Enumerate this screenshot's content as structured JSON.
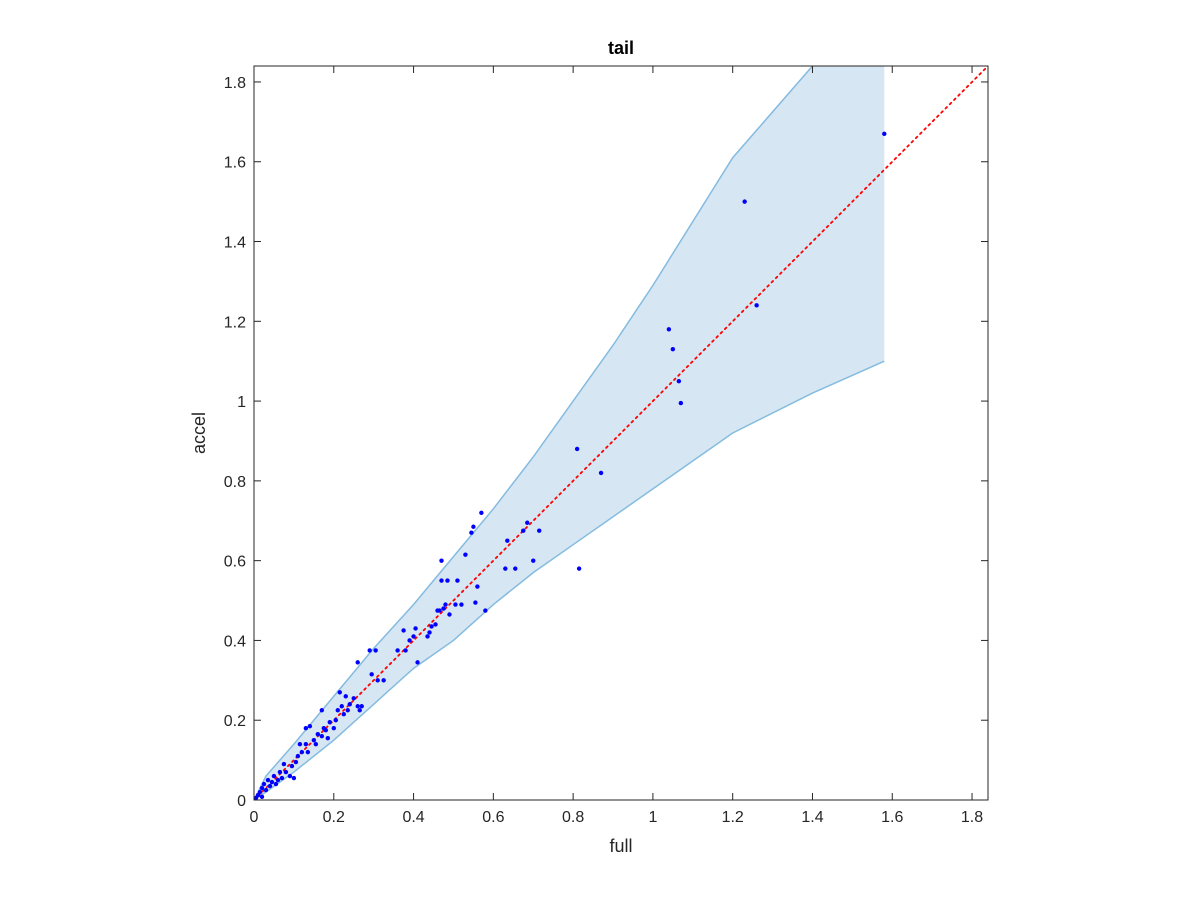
{
  "chart_data": {
    "type": "scatter",
    "title": "tail",
    "xlabel": "full",
    "ylabel": "accel",
    "xlim": [
      0,
      1.84
    ],
    "ylim": [
      0,
      1.84
    ],
    "xticks": [
      0,
      0.2,
      0.4,
      0.6,
      0.8,
      1,
      1.2,
      1.4,
      1.6,
      1.8
    ],
    "xtick_labels": [
      "0",
      "0.2",
      "0.4",
      "0.6",
      "0.8",
      "1",
      "1.2",
      "1.4",
      "1.6",
      "1.8"
    ],
    "yticks": [
      0,
      0.2,
      0.4,
      0.6,
      0.8,
      1,
      1.2,
      1.4,
      1.6,
      1.8
    ],
    "ytick_labels": [
      "0",
      "0.2",
      "0.4",
      "0.6",
      "0.8",
      "1",
      "1.2",
      "1.4",
      "1.6",
      "1.8"
    ],
    "grid": false,
    "box": true,
    "colors": {
      "points": "#0000ff",
      "band_fill": "#d6e6f3",
      "band_edge": "#84bbe0",
      "reference_line": "#ff0000",
      "axis": "#262626"
    },
    "band": {
      "upper": [
        [
          0,
          0
        ],
        [
          0.03,
          0.06
        ],
        [
          0.1,
          0.14
        ],
        [
          0.2,
          0.26
        ],
        [
          0.3,
          0.38
        ],
        [
          0.4,
          0.49
        ],
        [
          0.5,
          0.61
        ],
        [
          0.6,
          0.73
        ],
        [
          0.7,
          0.86
        ],
        [
          0.8,
          1.0
        ],
        [
          0.9,
          1.14
        ],
        [
          1.0,
          1.29
        ],
        [
          1.2,
          1.61
        ],
        [
          1.4,
          1.84
        ],
        [
          1.58,
          1.84
        ]
      ],
      "lower": [
        [
          0,
          0
        ],
        [
          0.03,
          0.02
        ],
        [
          0.1,
          0.07
        ],
        [
          0.2,
          0.15
        ],
        [
          0.3,
          0.24
        ],
        [
          0.4,
          0.33
        ],
        [
          0.5,
          0.4
        ],
        [
          0.6,
          0.49
        ],
        [
          0.7,
          0.57
        ],
        [
          0.8,
          0.64
        ],
        [
          1.0,
          0.78
        ],
        [
          1.2,
          0.92
        ],
        [
          1.4,
          1.02
        ],
        [
          1.58,
          1.1
        ]
      ]
    },
    "reference_line": {
      "style": "dotted",
      "from": [
        0,
        0
      ],
      "to": [
        1.84,
        1.84
      ]
    },
    "points": [
      [
        0.005,
        0.005
      ],
      [
        0.01,
        0.012
      ],
      [
        0.015,
        0.02
      ],
      [
        0.02,
        0.008
      ],
      [
        0.02,
        0.03
      ],
      [
        0.025,
        0.04
      ],
      [
        0.03,
        0.025
      ],
      [
        0.035,
        0.05
      ],
      [
        0.04,
        0.035
      ],
      [
        0.045,
        0.045
      ],
      [
        0.05,
        0.06
      ],
      [
        0.055,
        0.04
      ],
      [
        0.06,
        0.05
      ],
      [
        0.065,
        0.07
      ],
      [
        0.07,
        0.055
      ],
      [
        0.075,
        0.09
      ],
      [
        0.08,
        0.07
      ],
      [
        0.09,
        0.06
      ],
      [
        0.095,
        0.085
      ],
      [
        0.1,
        0.055
      ],
      [
        0.105,
        0.095
      ],
      [
        0.11,
        0.11
      ],
      [
        0.115,
        0.14
      ],
      [
        0.12,
        0.12
      ],
      [
        0.13,
        0.14
      ],
      [
        0.13,
        0.18
      ],
      [
        0.135,
        0.12
      ],
      [
        0.14,
        0.185
      ],
      [
        0.15,
        0.15
      ],
      [
        0.155,
        0.14
      ],
      [
        0.16,
        0.165
      ],
      [
        0.17,
        0.16
      ],
      [
        0.17,
        0.225
      ],
      [
        0.175,
        0.18
      ],
      [
        0.18,
        0.175
      ],
      [
        0.185,
        0.155
      ],
      [
        0.19,
        0.195
      ],
      [
        0.2,
        0.18
      ],
      [
        0.205,
        0.2
      ],
      [
        0.21,
        0.225
      ],
      [
        0.215,
        0.27
      ],
      [
        0.22,
        0.235
      ],
      [
        0.225,
        0.215
      ],
      [
        0.23,
        0.26
      ],
      [
        0.235,
        0.225
      ],
      [
        0.24,
        0.24
      ],
      [
        0.25,
        0.255
      ],
      [
        0.26,
        0.235
      ],
      [
        0.26,
        0.345
      ],
      [
        0.265,
        0.225
      ],
      [
        0.27,
        0.235
      ],
      [
        0.29,
        0.375
      ],
      [
        0.295,
        0.315
      ],
      [
        0.305,
        0.375
      ],
      [
        0.31,
        0.3
      ],
      [
        0.325,
        0.3
      ],
      [
        0.36,
        0.375
      ],
      [
        0.375,
        0.425
      ],
      [
        0.38,
        0.375
      ],
      [
        0.39,
        0.4
      ],
      [
        0.4,
        0.41
      ],
      [
        0.405,
        0.43
      ],
      [
        0.41,
        0.345
      ],
      [
        0.435,
        0.41
      ],
      [
        0.44,
        0.42
      ],
      [
        0.445,
        0.435
      ],
      [
        0.455,
        0.44
      ],
      [
        0.46,
        0.475
      ],
      [
        0.465,
        0.475
      ],
      [
        0.47,
        0.55
      ],
      [
        0.47,
        0.6
      ],
      [
        0.475,
        0.48
      ],
      [
        0.48,
        0.49
      ],
      [
        0.485,
        0.55
      ],
      [
        0.49,
        0.465
      ],
      [
        0.505,
        0.49
      ],
      [
        0.51,
        0.55
      ],
      [
        0.52,
        0.49
      ],
      [
        0.53,
        0.615
      ],
      [
        0.545,
        0.67
      ],
      [
        0.55,
        0.685
      ],
      [
        0.555,
        0.495
      ],
      [
        0.56,
        0.535
      ],
      [
        0.57,
        0.72
      ],
      [
        0.58,
        0.475
      ],
      [
        0.63,
        0.58
      ],
      [
        0.635,
        0.65
      ],
      [
        0.655,
        0.58
      ],
      [
        0.675,
        0.675
      ],
      [
        0.685,
        0.695
      ],
      [
        0.7,
        0.6
      ],
      [
        0.715,
        0.675
      ],
      [
        0.81,
        0.88
      ],
      [
        0.815,
        0.58
      ],
      [
        0.87,
        0.82
      ],
      [
        1.04,
        1.18
      ],
      [
        1.05,
        1.13
      ],
      [
        1.065,
        1.05
      ],
      [
        1.07,
        0.995
      ],
      [
        1.23,
        1.5
      ],
      [
        1.26,
        1.24
      ],
      [
        1.58,
        1.67
      ]
    ]
  }
}
